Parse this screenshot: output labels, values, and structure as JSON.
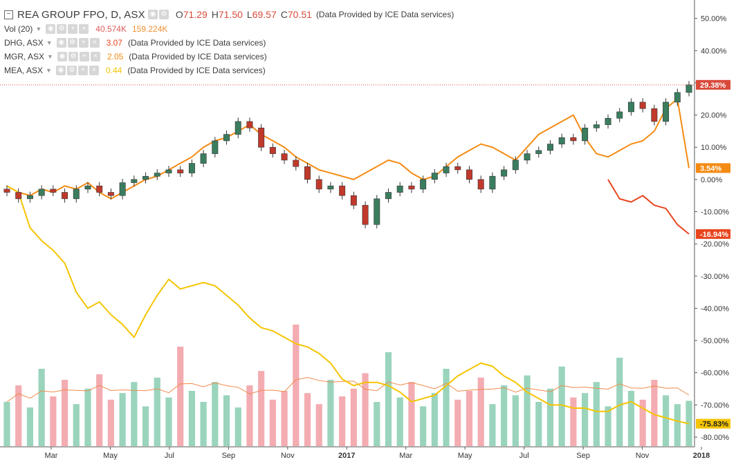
{
  "header": {
    "symbol": "REA GROUP FPO, D, ASX",
    "ohlc": [
      {
        "label": "O",
        "value": "71.29"
      },
      {
        "label": "H",
        "value": "71.50"
      },
      {
        "label": "L",
        "value": "69.57"
      },
      {
        "label": "C",
        "value": "70.51"
      }
    ],
    "provider": "(Data Provided by ICE Data services)"
  },
  "legend": {
    "volume": {
      "name": "Vol (20)",
      "value1": "40.574K",
      "value2": "159.224K",
      "color1": "#e05a5a",
      "color2": "#f09030"
    },
    "comparisons": [
      {
        "name": "DHG, ASX",
        "value": "3.07",
        "color": "#e8451e",
        "provider": "(Data Provided by ICE Data services)"
      },
      {
        "name": "MGR, ASX",
        "value": "2.05",
        "color": "#f58a12",
        "provider": "(Data Provided by ICE Data services)"
      },
      {
        "name": "MEA, ASX",
        "value": "0.44",
        "color": "#f5c400",
        "provider": "(Data Provided by ICE Data services)"
      }
    ]
  },
  "chart_data": {
    "type": "line",
    "x_axis": {
      "labels": [
        "Mar",
        "May",
        "Jul",
        "Sep",
        "Nov",
        "2017",
        "Mar",
        "May",
        "Jul",
        "Sep",
        "Nov",
        "2018"
      ],
      "bold": [
        "2017",
        "2018"
      ]
    },
    "y_axis": {
      "unit": "%",
      "ticks": [
        "50.00%",
        "40.00%",
        "30.00%",
        "20.00%",
        "10.00%",
        "0.00%",
        "-10.00%",
        "-20.00%",
        "-30.00%",
        "-40.00%",
        "-50.00%",
        "-60.00%",
        "-70.00%",
        "-80.00%"
      ],
      "ylim": [
        -83,
        54
      ]
    },
    "grid": false,
    "n_points": 60,
    "series": [
      {
        "name": "REA GROUP FPO",
        "kind": "candlestick",
        "up_color": "#3a7d5f",
        "down_color": "#c0392b",
        "last_label": "29.38%",
        "label_color": "#d94a3a",
        "close": [
          -4,
          -6,
          -5,
          -3,
          -4,
          -6,
          -3,
          -2,
          -4,
          -5,
          -1,
          0,
          1,
          2,
          3,
          2,
          5,
          8,
          12,
          14,
          18,
          16,
          10,
          8,
          6,
          4,
          0,
          -3,
          -2,
          -5,
          -8,
          -14,
          -6,
          -4,
          -2,
          -3,
          0,
          2,
          4,
          3,
          0,
          -3,
          1,
          3,
          6,
          8,
          9,
          11,
          13,
          12,
          16,
          17,
          19,
          21,
          24,
          22,
          18,
          24,
          27,
          29.38
        ]
      },
      {
        "name": "MGR, ASX",
        "kind": "line",
        "color": "#f58a12",
        "last_label": "3.54%",
        "values": [
          -2,
          -4,
          -5,
          -3,
          -4,
          -2,
          -3,
          -1,
          -4,
          -6,
          -4,
          -2,
          0,
          1,
          3,
          5,
          7,
          10,
          12,
          13,
          15,
          17,
          14,
          12,
          10,
          7,
          5,
          3,
          2,
          1,
          0,
          2,
          4,
          6,
          5,
          2,
          0,
          1,
          4,
          7,
          9,
          11,
          10,
          8,
          6,
          10,
          14,
          16,
          18,
          20,
          13,
          8,
          7,
          9,
          11,
          12,
          15,
          22,
          25,
          3.54
        ]
      },
      {
        "name": "DHG, ASX",
        "kind": "line",
        "color": "#e8451e",
        "last_label": "-16.94%",
        "values": [
          null,
          null,
          null,
          null,
          null,
          null,
          null,
          null,
          null,
          null,
          null,
          null,
          null,
          null,
          null,
          null,
          null,
          null,
          null,
          null,
          null,
          null,
          null,
          null,
          null,
          null,
          null,
          null,
          null,
          null,
          null,
          null,
          null,
          null,
          null,
          null,
          null,
          null,
          null,
          null,
          null,
          null,
          null,
          null,
          null,
          null,
          null,
          null,
          null,
          null,
          null,
          null,
          0,
          -6,
          -7,
          -5,
          -8,
          -9,
          -14,
          -16.94
        ]
      },
      {
        "name": "MEA, ASX",
        "kind": "line",
        "color": "#f5c400",
        "last_label": "-75.83%",
        "values": [
          -2,
          -4,
          -15,
          -19,
          -22,
          -26,
          -35,
          -40,
          -38,
          -42,
          -45,
          -49,
          -42,
          -36,
          -31,
          -34,
          -33,
          -32,
          -33,
          -36,
          -39,
          -43,
          -46,
          -47,
          -49,
          -51,
          -52,
          -54,
          -57,
          -62,
          -64,
          -63,
          -63,
          -64,
          -66,
          -69,
          -68,
          -67,
          -64,
          -61,
          -59,
          -57,
          -58,
          -61,
          -63,
          -66,
          -68,
          -70,
          -70,
          -71,
          -71,
          -72,
          -72,
          -70,
          -69,
          -71,
          -73,
          -74,
          -75,
          -75.83
        ]
      }
    ],
    "volume": {
      "up_color": "#8fcfb5",
      "down_color": "#f2a3a8",
      "ma_color": "#f08a4a",
      "values": [
        40,
        55,
        35,
        70,
        45,
        60,
        38,
        52,
        65,
        42,
        48,
        58,
        36,
        62,
        44,
        90,
        50,
        40,
        58,
        46,
        35,
        55,
        68,
        42,
        50,
        110,
        48,
        38,
        60,
        45,
        52,
        66,
        40,
        85,
        44,
        58,
        36,
        48,
        70,
        42,
        50,
        62,
        38,
        55,
        46,
        64,
        40,
        52,
        72,
        44,
        48,
        58,
        36,
        80,
        50,
        42,
        60,
        46,
        38,
        41
      ]
    }
  }
}
